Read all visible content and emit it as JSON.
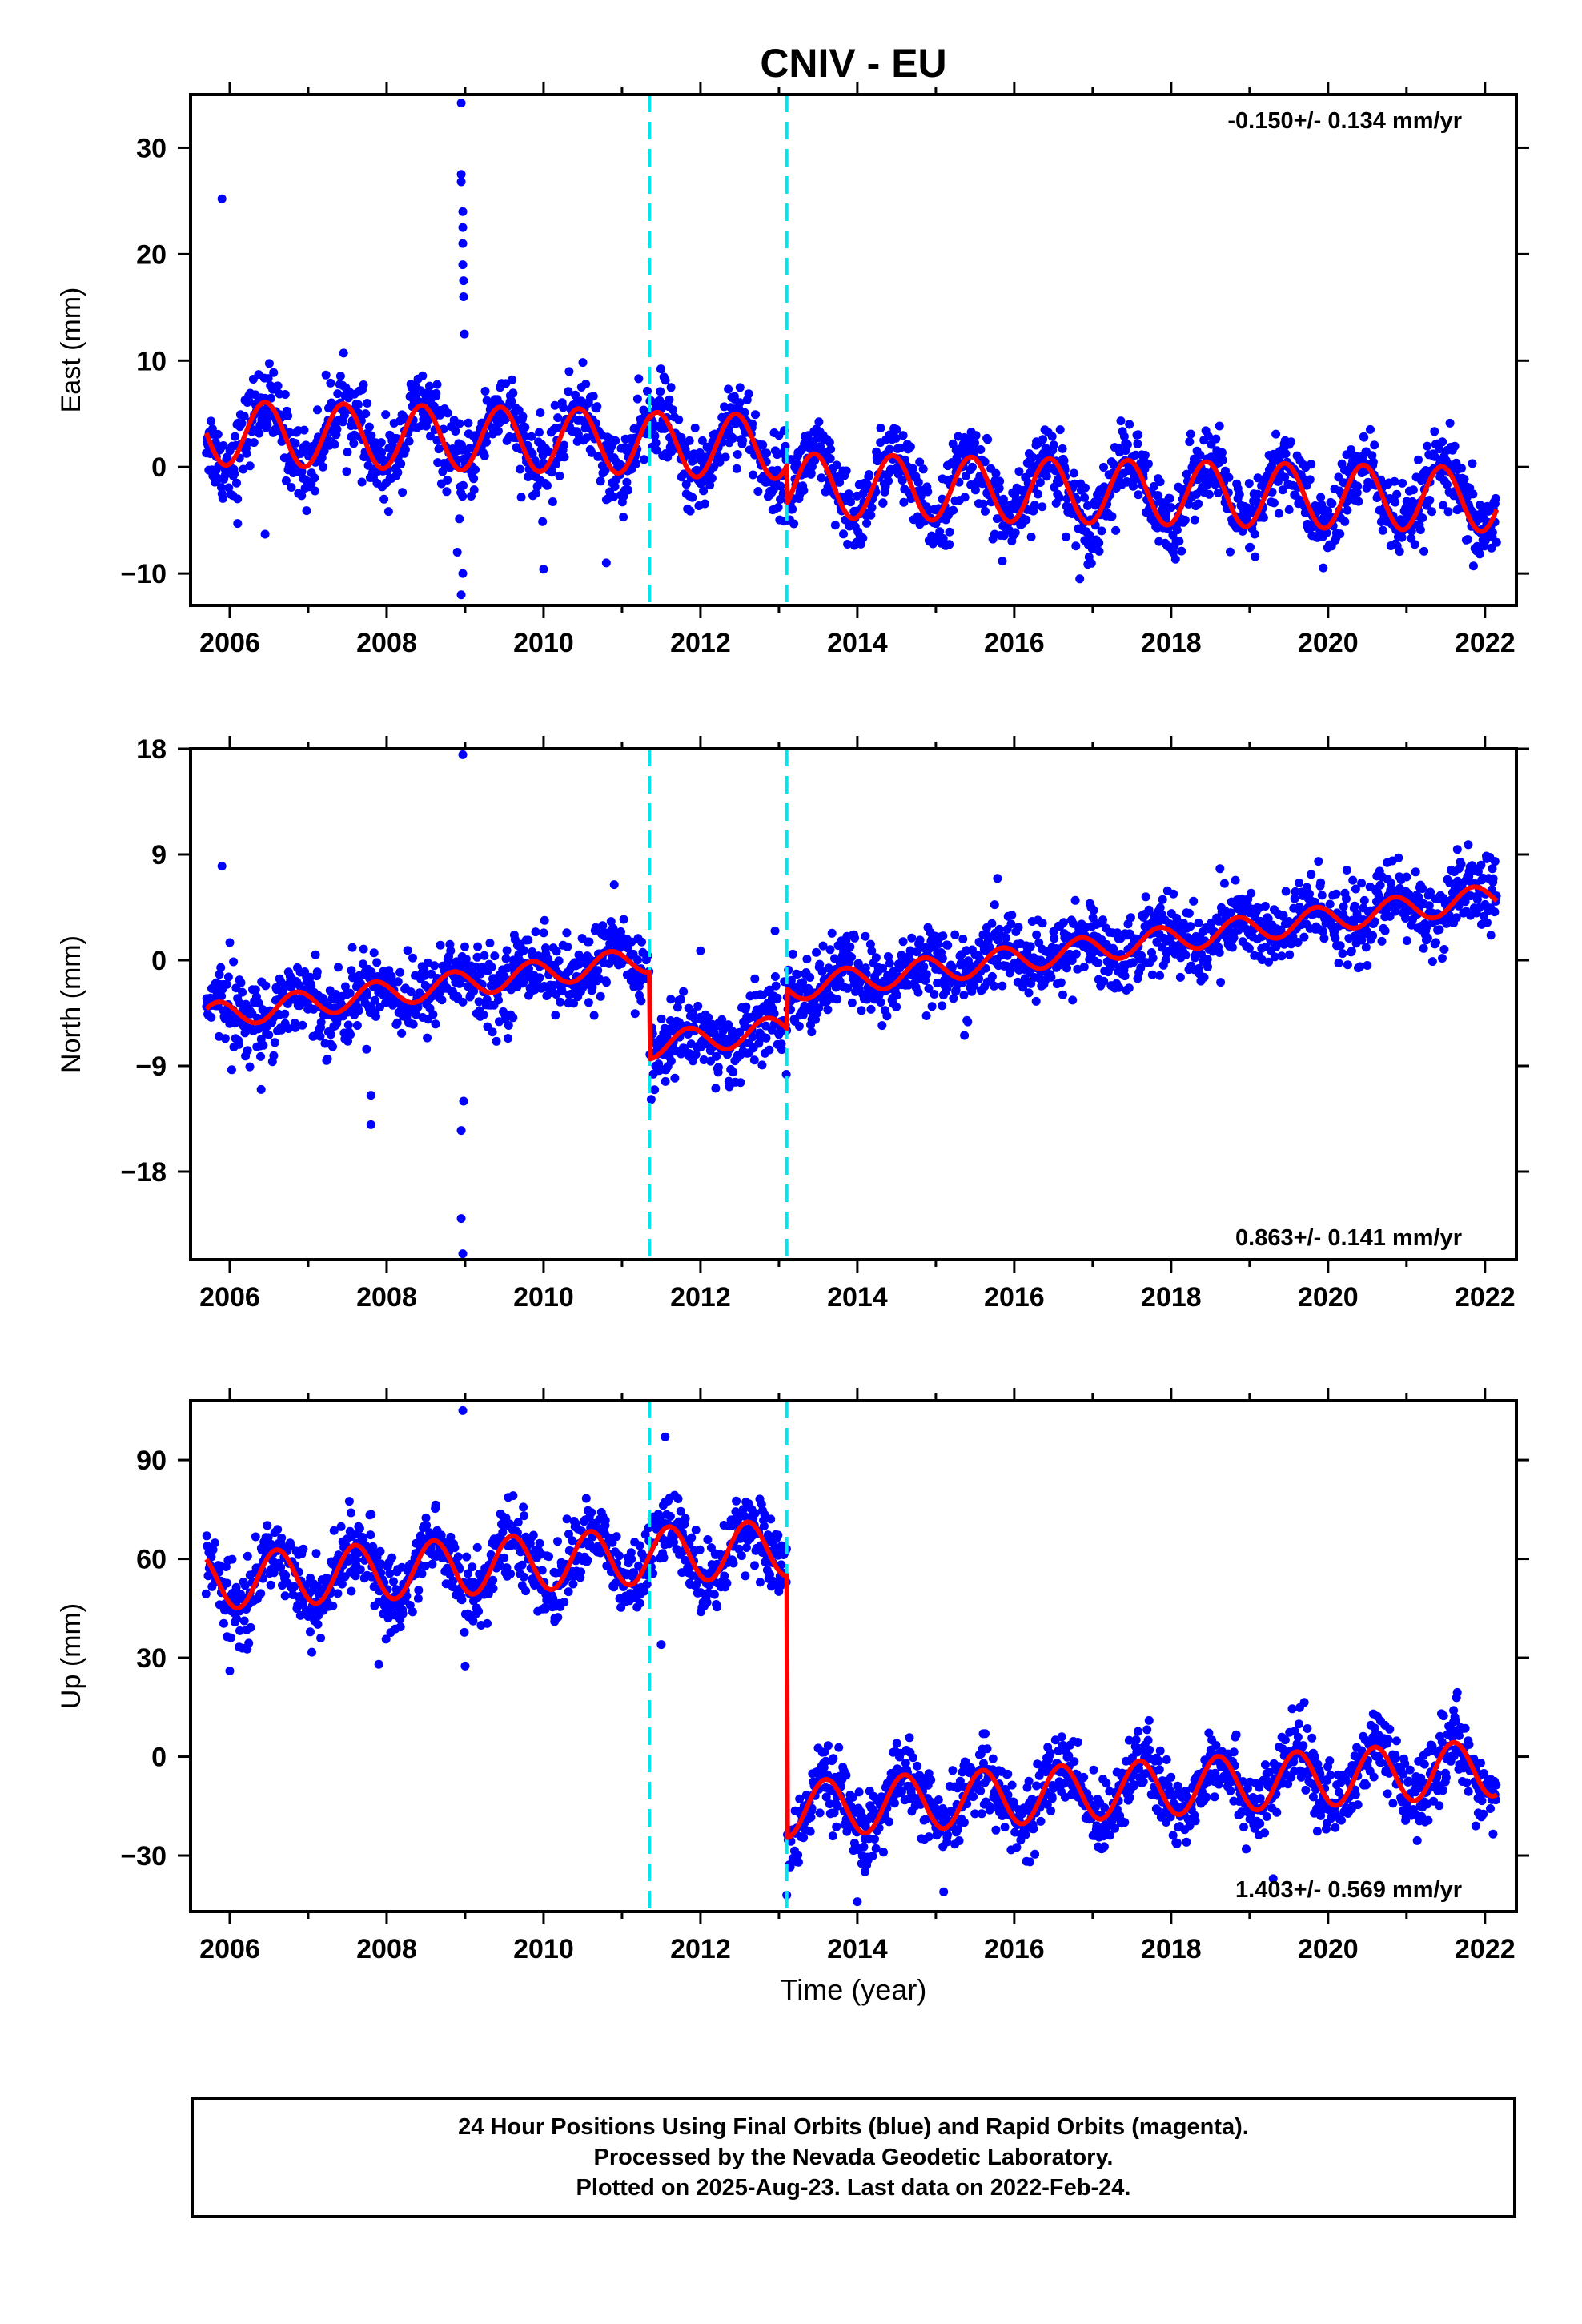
{
  "title": "CNIV - EU",
  "colors": {
    "points": "#0000ff",
    "model": "#ff0000",
    "breaks": "#00e5ee",
    "frame": "#000000"
  },
  "chart_data": [
    {
      "type": "scatter",
      "ylabel": "East (mm)",
      "xlabel": "",
      "xlim": [
        2005.5,
        2022.4
      ],
      "ylim": [
        -13,
        35
      ],
      "yticks": [
        -10,
        0,
        10,
        20,
        30
      ],
      "xticks": [
        2006,
        2008,
        2010,
        2012,
        2014,
        2016,
        2018,
        2020,
        2022
      ],
      "rate_label": "-0.150+/- 0.134 mm/yr",
      "rate_position": "top-right",
      "breaks": [
        2011.35,
        2013.1
      ],
      "model_line": {
        "start": 2005.7,
        "end": 2022.15,
        "segments": [
          {
            "from": 2005.7,
            "to": 2011.35,
            "offset": 3.2,
            "rate": -0.15
          },
          {
            "from": 2011.35,
            "to": 2013.1,
            "offset": 3.0,
            "rate": -0.15
          },
          {
            "from": 2013.1,
            "to": 2022.15,
            "offset": -0.6,
            "rate": -0.15
          }
        ],
        "annual_amplitude": 3.0,
        "annual_phase_peak": 0.45
      },
      "scatter_sd": 1.8,
      "outliers": [
        {
          "x": 2005.9,
          "y": 25.2
        },
        {
          "x": 2008.95,
          "y": 34.2
        },
        {
          "x": 2008.95,
          "y": 27.5
        },
        {
          "x": 2008.95,
          "y": 26.8
        },
        {
          "x": 2008.97,
          "y": 24.0
        },
        {
          "x": 2008.97,
          "y": 22.5
        },
        {
          "x": 2008.97,
          "y": 21.0
        },
        {
          "x": 2008.97,
          "y": 19.0
        },
        {
          "x": 2008.98,
          "y": 17.5
        },
        {
          "x": 2008.98,
          "y": 16.0
        },
        {
          "x": 2008.99,
          "y": 12.5
        },
        {
          "x": 2008.95,
          "y": -12.0
        },
        {
          "x": 2008.97,
          "y": -10.0
        },
        {
          "x": 2008.9,
          "y": -8.0
        },
        {
          "x": 2006.1,
          "y": -5.3
        },
        {
          "x": 2010.0,
          "y": -9.6
        },
        {
          "x": 2010.8,
          "y": -9.0
        },
        {
          "x": 2006.45,
          "y": -6.3
        }
      ]
    },
    {
      "type": "scatter",
      "ylabel": "North (mm)",
      "xlabel": "",
      "xlim": [
        2005.5,
        2022.4
      ],
      "ylim": [
        -25.5,
        18
      ],
      "yticks": [
        -18,
        -9,
        0,
        9,
        18
      ],
      "xticks": [
        2006,
        2008,
        2010,
        2012,
        2014,
        2016,
        2018,
        2020,
        2022
      ],
      "rate_label": "0.863+/- 0.141 mm/yr",
      "rate_position": "bottom-right",
      "breaks": [
        2011.35,
        2013.1
      ],
      "model_line": {
        "start": 2005.7,
        "end": 2022.15,
        "segments": [
          {
            "from": 2005.7,
            "to": 2011.35,
            "offset": -4.8,
            "rate": 0.863
          },
          {
            "from": 2011.35,
            "to": 2013.1,
            "offset": -12.2,
            "rate": 0.863
          },
          {
            "from": 2013.1,
            "to": 2022.15,
            "offset": -8.8,
            "rate": 0.863
          }
        ],
        "annual_amplitude": 1.1,
        "annual_phase_peak": 0.85
      },
      "scatter_sd": 1.6,
      "outliers": [
        {
          "x": 2005.9,
          "y": 8.0
        },
        {
          "x": 2008.97,
          "y": 17.5
        },
        {
          "x": 2008.95,
          "y": -22.0
        },
        {
          "x": 2008.97,
          "y": -25.0
        },
        {
          "x": 2008.95,
          "y": -14.5
        },
        {
          "x": 2008.98,
          "y": -12.0
        },
        {
          "x": 2007.8,
          "y": -14.0
        },
        {
          "x": 2007.8,
          "y": -11.5
        },
        {
          "x": 2012.0,
          "y": 0.8
        },
        {
          "x": 2006.4,
          "y": -11.0
        },
        {
          "x": 2006.0,
          "y": 1.5
        },
        {
          "x": 2012.95,
          "y": 2.5
        }
      ]
    },
    {
      "type": "scatter",
      "ylabel": "Up (mm)",
      "xlabel": "Time (year)",
      "xlim": [
        2005.5,
        2022.4
      ],
      "ylim": [
        -47,
        108
      ],
      "yticks": [
        -30,
        0,
        30,
        60,
        90
      ],
      "xticks": [
        2006,
        2008,
        2010,
        2012,
        2014,
        2016,
        2018,
        2020,
        2022
      ],
      "rate_label": "1.403+/- 0.569 mm/yr",
      "rate_position": "bottom-right",
      "breaks": [
        2011.35,
        2013.1
      ],
      "model_line": {
        "start": 2005.7,
        "end": 2022.15,
        "segments": [
          {
            "from": 2005.7,
            "to": 2011.35,
            "offset": 53.0,
            "rate": 1.403
          },
          {
            "from": 2011.35,
            "to": 2013.1,
            "offset": 53.0,
            "rate": 1.403
          },
          {
            "from": 2013.1,
            "to": 2022.15,
            "offset": -26.5,
            "rate": 1.403
          }
        ],
        "annual_amplitude": 8.5,
        "annual_phase_peak": 0.6
      },
      "scatter_sd": 5.5,
      "outliers": [
        {
          "x": 2008.97,
          "y": 105.0
        },
        {
          "x": 2011.55,
          "y": 97.0
        },
        {
          "x": 2006.0,
          "y": 26.0
        },
        {
          "x": 2009.0,
          "y": 27.5
        },
        {
          "x": 2011.5,
          "y": 34.0
        },
        {
          "x": 2013.1,
          "y": -42.0
        },
        {
          "x": 2014.0,
          "y": -44.0
        },
        {
          "x": 2015.1,
          "y": -41.0
        },
        {
          "x": 2007.9,
          "y": 28.0
        },
        {
          "x": 2019.3,
          "y": -37.0
        },
        {
          "x": 2021.6,
          "y": 14.0
        }
      ]
    }
  ],
  "footer": {
    "line1": "24 Hour Positions Using Final Orbits (blue) and Rapid Orbits (magenta).",
    "line2": "Processed by the Nevada Geodetic Laboratory.",
    "line3": "Plotted on 2025-Aug-23. Last data on 2022-Feb-24."
  }
}
